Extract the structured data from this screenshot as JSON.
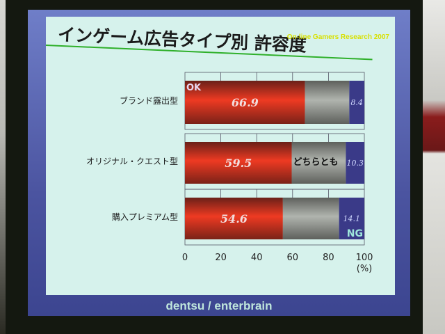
{
  "slide": {
    "title": "インゲーム広告タイプ別 許容度",
    "subtitle": "On-line Gamers Research 2007",
    "footer": "dentsu / enterbrain"
  },
  "chart_data": {
    "type": "bar",
    "stacked": true,
    "orientation": "horizontal",
    "title": "インゲーム広告タイプ別 許容度",
    "categories": [
      "ブランド露出型",
      "オリジナル・クエスト型",
      "購入プレミアム型"
    ],
    "series": [
      {
        "name": "OK",
        "color": "#e8301c",
        "values": [
          66.9,
          59.5,
          54.6
        ],
        "labels": [
          "66.9",
          "59.5",
          "54.6"
        ]
      },
      {
        "name": "どちらとも",
        "color": "#a4a8a2",
        "values": [
          24.7,
          30.2,
          31.3
        ]
      },
      {
        "name": "NG",
        "color": "#3a3a88",
        "values": [
          8.4,
          10.3,
          14.1
        ],
        "labels": [
          "8.4",
          "10.3",
          "14.1"
        ]
      }
    ],
    "xlim": [
      0,
      100
    ],
    "xticks": [
      "0",
      "20",
      "40",
      "60",
      "80",
      "100"
    ],
    "xunit": "(%)",
    "grid": true
  }
}
